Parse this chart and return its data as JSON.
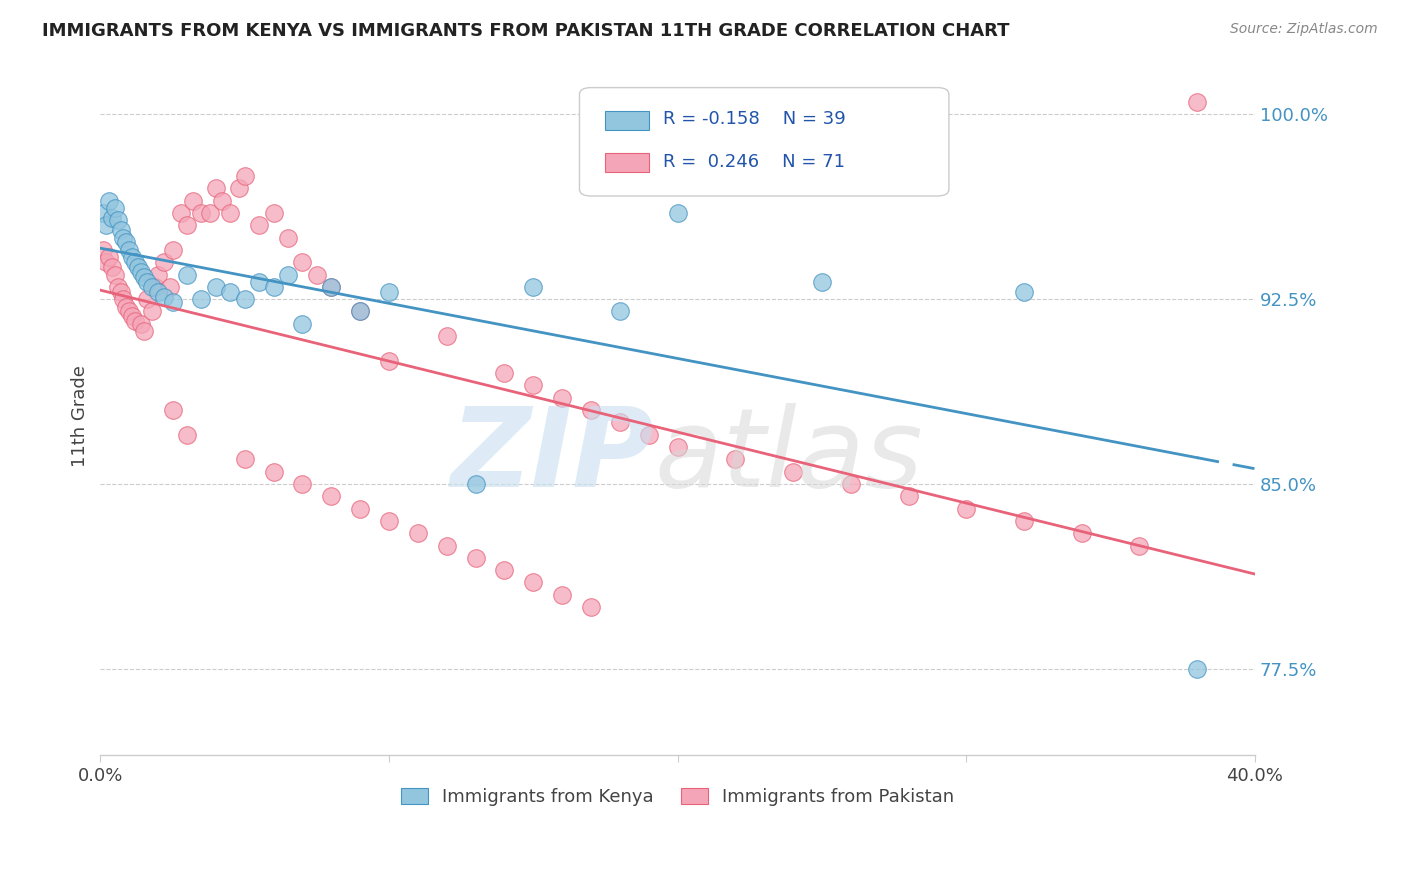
{
  "title": "IMMIGRANTS FROM KENYA VS IMMIGRANTS FROM PAKISTAN 11TH GRADE CORRELATION CHART",
  "source": "Source: ZipAtlas.com",
  "ylabel": "11th Grade",
  "legend_blue_label": "Immigrants from Kenya",
  "legend_pink_label": "Immigrants from Pakistan",
  "R_blue": -0.158,
  "N_blue": 39,
  "R_pink": 0.246,
  "N_pink": 71,
  "xlim": [
    0.0,
    0.4
  ],
  "ylim": [
    0.74,
    1.015
  ],
  "yticks": [
    0.775,
    0.85,
    0.925,
    1.0
  ],
  "ytick_labels": [
    "77.5%",
    "85.0%",
    "92.5%",
    "100.0%"
  ],
  "xticks": [
    0.0,
    0.1,
    0.2,
    0.3,
    0.4
  ],
  "xtick_labels": [
    "0.0%",
    "",
    "",
    "",
    "40.0%"
  ],
  "blue_color": "#92c5de",
  "pink_color": "#f4a6b8",
  "blue_line_color": "#4393c3",
  "pink_line_color": "#e8637a",
  "kenya_x": [
    0.001,
    0.002,
    0.003,
    0.004,
    0.005,
    0.006,
    0.007,
    0.008,
    0.009,
    0.01,
    0.011,
    0.012,
    0.013,
    0.014,
    0.015,
    0.016,
    0.018,
    0.02,
    0.022,
    0.025,
    0.03,
    0.035,
    0.04,
    0.045,
    0.05,
    0.055,
    0.06,
    0.065,
    0.07,
    0.08,
    0.09,
    0.1,
    0.13,
    0.15,
    0.18,
    0.2,
    0.25,
    0.32,
    0.38
  ],
  "kenya_y": [
    0.96,
    0.955,
    0.965,
    0.958,
    0.962,
    0.957,
    0.953,
    0.95,
    0.948,
    0.945,
    0.942,
    0.94,
    0.938,
    0.936,
    0.934,
    0.932,
    0.93,
    0.928,
    0.926,
    0.924,
    0.935,
    0.925,
    0.93,
    0.928,
    0.925,
    0.932,
    0.93,
    0.935,
    0.915,
    0.93,
    0.92,
    0.928,
    0.85,
    0.93,
    0.92,
    0.96,
    0.932,
    0.928,
    0.775
  ],
  "pakistan_x": [
    0.001,
    0.002,
    0.003,
    0.004,
    0.005,
    0.006,
    0.007,
    0.008,
    0.009,
    0.01,
    0.011,
    0.012,
    0.014,
    0.015,
    0.016,
    0.018,
    0.019,
    0.02,
    0.022,
    0.024,
    0.025,
    0.028,
    0.03,
    0.032,
    0.035,
    0.038,
    0.04,
    0.042,
    0.045,
    0.048,
    0.05,
    0.055,
    0.06,
    0.065,
    0.07,
    0.075,
    0.08,
    0.09,
    0.1,
    0.12,
    0.14,
    0.15,
    0.16,
    0.17,
    0.18,
    0.19,
    0.2,
    0.22,
    0.24,
    0.26,
    0.28,
    0.3,
    0.32,
    0.34,
    0.36,
    0.025,
    0.03,
    0.05,
    0.06,
    0.07,
    0.08,
    0.09,
    0.1,
    0.11,
    0.12,
    0.13,
    0.14,
    0.15,
    0.16,
    0.17,
    0.38
  ],
  "pakistan_y": [
    0.945,
    0.94,
    0.942,
    0.938,
    0.935,
    0.93,
    0.928,
    0.925,
    0.922,
    0.92,
    0.918,
    0.916,
    0.915,
    0.912,
    0.925,
    0.92,
    0.93,
    0.935,
    0.94,
    0.93,
    0.945,
    0.96,
    0.955,
    0.965,
    0.96,
    0.96,
    0.97,
    0.965,
    0.96,
    0.97,
    0.975,
    0.955,
    0.96,
    0.95,
    0.94,
    0.935,
    0.93,
    0.92,
    0.9,
    0.91,
    0.895,
    0.89,
    0.885,
    0.88,
    0.875,
    0.87,
    0.865,
    0.86,
    0.855,
    0.85,
    0.845,
    0.84,
    0.835,
    0.83,
    0.825,
    0.88,
    0.87,
    0.86,
    0.855,
    0.85,
    0.845,
    0.84,
    0.835,
    0.83,
    0.825,
    0.82,
    0.815,
    0.81,
    0.805,
    0.8,
    1.005
  ]
}
